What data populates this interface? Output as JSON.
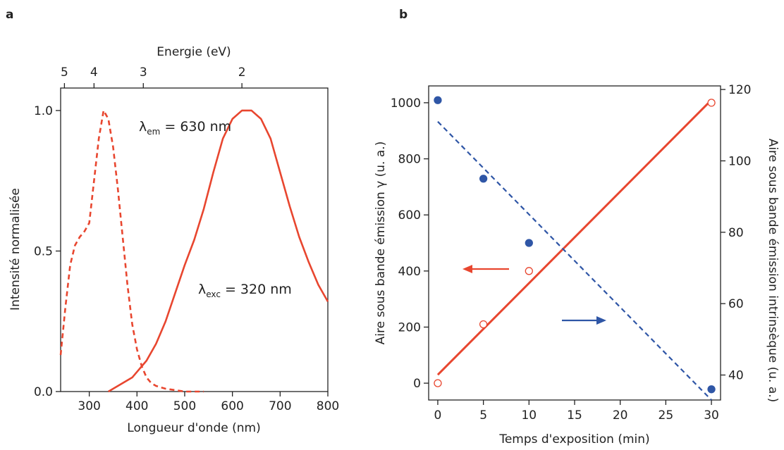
{
  "colors": {
    "red": "#e8462f",
    "blue": "#2f56a6",
    "axis": "#222222"
  },
  "chart_data": [
    {
      "panel": "a",
      "type": "line",
      "xlabel": "Longueur d'onde (nm)",
      "ylabel": "Intensité normalisée",
      "top_axis_label": "Energie (eV)",
      "xlim": [
        240,
        800
      ],
      "ylim": [
        0,
        1.08
      ],
      "x_ticks": [
        300,
        400,
        500,
        600,
        700,
        800
      ],
      "y_ticks": [
        0.0,
        0.5,
        1.0
      ],
      "y_tick_labels": [
        "0.0",
        "0.5",
        "1.0"
      ],
      "top_ticks": [
        5,
        4,
        3,
        2
      ],
      "grid": false,
      "series": [
        {
          "style": "dashed",
          "x": [
            240,
            250,
            260,
            270,
            280,
            290,
            300,
            310,
            320,
            330,
            340,
            350,
            360,
            370,
            380,
            390,
            400,
            410,
            420,
            430,
            440,
            460,
            480,
            500,
            520,
            540
          ],
          "y": [
            0.13,
            0.3,
            0.45,
            0.52,
            0.55,
            0.57,
            0.6,
            0.75,
            0.9,
            1.0,
            0.97,
            0.87,
            0.72,
            0.55,
            0.38,
            0.24,
            0.15,
            0.09,
            0.05,
            0.03,
            0.02,
            0.01,
            0.005,
            0.0,
            0.0,
            0.0
          ]
        },
        {
          "style": "solid",
          "x": [
            340,
            350,
            360,
            370,
            380,
            390,
            400,
            420,
            440,
            460,
            480,
            500,
            520,
            540,
            560,
            580,
            600,
            620,
            640,
            660,
            680,
            700,
            720,
            740,
            760,
            780,
            800
          ],
          "y": [
            0.0,
            0.01,
            0.02,
            0.03,
            0.04,
            0.05,
            0.07,
            0.11,
            0.17,
            0.25,
            0.35,
            0.45,
            0.54,
            0.65,
            0.78,
            0.9,
            0.97,
            1.0,
            1.0,
            0.97,
            0.9,
            0.78,
            0.66,
            0.55,
            0.46,
            0.38,
            0.32
          ]
        }
      ],
      "annotations": [
        {
          "text": "λ",
          "sub": "em",
          "rest": " = 630 nm"
        },
        {
          "text": "λ",
          "sub": "exc",
          "rest": " = 320 nm"
        }
      ]
    },
    {
      "panel": "b",
      "type": "scatter",
      "xlabel": "Temps d'exposition (min)",
      "ylabel": "Aire sous bande émission γ (u. a.)",
      "ylabel_right": "Aire sous bande émission intrinsèque (u. a.)",
      "xlim": [
        -1,
        31
      ],
      "ylim": [
        -60,
        1060
      ],
      "ylim_right": [
        33,
        121
      ],
      "x_ticks": [
        0,
        5,
        10,
        15,
        20,
        25,
        30
      ],
      "y_ticks": [
        0,
        200,
        400,
        600,
        800,
        1000
      ],
      "y_ticks_right": [
        40,
        60,
        80,
        100,
        120
      ],
      "grid": false,
      "series": [
        {
          "axis": "left",
          "marker": "open-circle",
          "x": [
            0,
            5,
            10,
            30
          ],
          "y": [
            0,
            210,
            400,
            1000
          ],
          "fit": {
            "style": "solid",
            "x": [
              0,
              30
            ],
            "y": [
              30,
              1010
            ]
          }
        },
        {
          "axis": "right",
          "marker": "filled-circle",
          "x": [
            0,
            5,
            10,
            30
          ],
          "y": [
            117,
            95,
            77,
            36
          ],
          "fit": {
            "style": "dashed",
            "x": [
              0,
              30
            ],
            "y": [
              111,
              33
            ]
          }
        }
      ]
    }
  ]
}
